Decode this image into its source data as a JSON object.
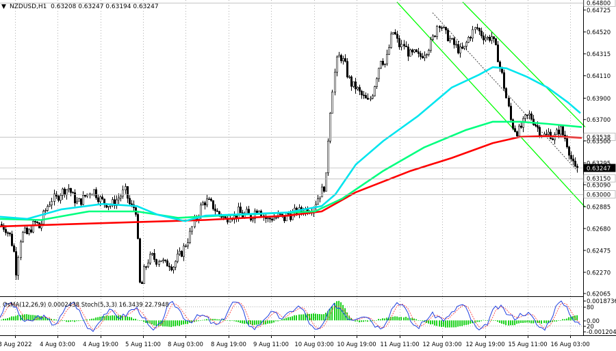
{
  "header": {
    "arrow": "▼",
    "symbol_info": "NZDUSD,H1  0.63208 0.63247 0.63194 0.63247"
  },
  "colors": {
    "candle": "#000000",
    "ema_200": "#ff0000",
    "ema_144": "#00ff7f",
    "ema_50": "#00e5ee",
    "channel": "#00ff00",
    "stoch_main": "#1f3fe0",
    "stoch_signal": "#ff4040",
    "osma": "#00cc00",
    "grid": "#7a7a7a"
  },
  "chart_data": [
    {
      "type": "candlestick",
      "title": "NZDUSD,H1",
      "ylim": [
        0.62065,
        0.648
      ],
      "price_labels": [
        "0.64800",
        "0.64725",
        "0.64520",
        "0.64315",
        "0.64110",
        "0.63900",
        "0.63700",
        "0.63538",
        "0.63500",
        "0.63295",
        "0.63247",
        "0.63150",
        "0.63090",
        "0.63000",
        "0.62885",
        "0.62680",
        "0.62475",
        "0.62270",
        "0.62065"
      ],
      "marked_levels": [
        {
          "label": "0.64800",
          "value": 0.648,
          "style": "box"
        },
        {
          "label": "0.63538",
          "value": 0.63538,
          "style": "box"
        },
        {
          "label": "0.63247",
          "value": 0.63247,
          "style": "current"
        },
        {
          "label": "0.63150",
          "value": 0.6315,
          "style": "box"
        },
        {
          "label": "0.63000",
          "value": 0.63,
          "style": "box"
        }
      ],
      "x_labels": [
        "3 Aug 2022",
        "4 Aug 03:00",
        "4 Aug 19:00",
        "5 Aug 11:00",
        "8 Aug 03:00",
        "8 Aug 19:00",
        "9 Aug 11:00",
        "10 Aug 03:00",
        "10 Aug 19:00",
        "11 Aug 11:00",
        "12 Aug 03:00",
        "12 Aug 19:00",
        "15 Aug 11:00",
        "16 Aug 03:00"
      ],
      "close_path": [
        [
          0,
          0.6272
        ],
        [
          8,
          0.6268
        ],
        [
          14,
          0.6262
        ],
        [
          20,
          0.6248
        ],
        [
          24,
          0.6225
        ],
        [
          28,
          0.6256
        ],
        [
          34,
          0.6265
        ],
        [
          40,
          0.6262
        ],
        [
          46,
          0.627
        ],
        [
          52,
          0.6274
        ],
        [
          58,
          0.6268
        ],
        [
          64,
          0.6282
        ],
        [
          70,
          0.629
        ],
        [
          76,
          0.6296
        ],
        [
          82,
          0.6296
        ],
        [
          88,
          0.6302
        ],
        [
          94,
          0.6304
        ],
        [
          100,
          0.6306
        ],
        [
          106,
          0.6298
        ],
        [
          112,
          0.6292
        ],
        [
          118,
          0.6294
        ],
        [
          124,
          0.6298
        ],
        [
          130,
          0.6302
        ],
        [
          136,
          0.6304
        ],
        [
          142,
          0.6298
        ],
        [
          148,
          0.6294
        ],
        [
          154,
          0.6292
        ],
        [
          160,
          0.629
        ],
        [
          166,
          0.6292
        ],
        [
          172,
          0.6296
        ],
        [
          178,
          0.63
        ],
        [
          182,
          0.6304
        ],
        [
          186,
          0.6296
        ],
        [
          190,
          0.6288
        ],
        [
          196,
          0.6288
        ],
        [
          200,
          0.6282
        ],
        [
          202,
          0.622
        ],
        [
          206,
          0.6212
        ],
        [
          210,
          0.6228
        ],
        [
          216,
          0.6238
        ],
        [
          222,
          0.6242
        ],
        [
          228,
          0.6238
        ],
        [
          234,
          0.624
        ],
        [
          240,
          0.6234
        ],
        [
          246,
          0.6236
        ],
        [
          252,
          0.6232
        ],
        [
          258,
          0.624
        ],
        [
          264,
          0.6244
        ],
        [
          270,
          0.6252
        ],
        [
          276,
          0.626
        ],
        [
          282,
          0.6272
        ],
        [
          288,
          0.628
        ],
        [
          294,
          0.629
        ],
        [
          300,
          0.6294
        ],
        [
          306,
          0.6292
        ],
        [
          312,
          0.6288
        ],
        [
          318,
          0.6282
        ],
        [
          324,
          0.628
        ],
        [
          330,
          0.6276
        ],
        [
          336,
          0.6282
        ],
        [
          342,
          0.6278
        ],
        [
          348,
          0.6284
        ],
        [
          354,
          0.628
        ],
        [
          360,
          0.6282
        ],
        [
          366,
          0.6278
        ],
        [
          372,
          0.6284
        ],
        [
          378,
          0.6288
        ],
        [
          384,
          0.628
        ],
        [
          390,
          0.6276
        ],
        [
          396,
          0.6278
        ],
        [
          402,
          0.6278
        ],
        [
          408,
          0.628
        ],
        [
          414,
          0.6276
        ],
        [
          420,
          0.6282
        ],
        [
          426,
          0.628
        ],
        [
          432,
          0.6284
        ],
        [
          438,
          0.6284
        ],
        [
          444,
          0.6286
        ],
        [
          450,
          0.6286
        ],
        [
          456,
          0.6288
        ],
        [
          462,
          0.6294
        ],
        [
          468,
          0.6302
        ],
        [
          472,
          0.6305
        ],
        [
          476,
          0.6312
        ],
        [
          480,
          0.636
        ],
        [
          484,
          0.6392
        ],
        [
          488,
          0.6412
        ],
        [
          492,
          0.6426
        ],
        [
          496,
          0.643
        ],
        [
          500,
          0.6426
        ],
        [
          504,
          0.642
        ],
        [
          508,
          0.641
        ],
        [
          514,
          0.6402
        ],
        [
          520,
          0.64
        ],
        [
          526,
          0.6394
        ],
        [
          532,
          0.639
        ],
        [
          538,
          0.6386
        ],
        [
          544,
          0.6396
        ],
        [
          550,
          0.6412
        ],
        [
          556,
          0.6428
        ],
        [
          562,
          0.6422
        ],
        [
          566,
          0.643
        ],
        [
          570,
          0.6444
        ],
        [
          574,
          0.6452
        ],
        [
          578,
          0.6448
        ],
        [
          582,
          0.644
        ],
        [
          586,
          0.6438
        ],
        [
          590,
          0.644
        ],
        [
          594,
          0.6434
        ],
        [
          600,
          0.643
        ],
        [
          606,
          0.6432
        ],
        [
          612,
          0.6428
        ],
        [
          618,
          0.6432
        ],
        [
          624,
          0.6436
        ],
        [
          630,
          0.6442
        ],
        [
          636,
          0.6452
        ],
        [
          640,
          0.6462
        ],
        [
          644,
          0.6458
        ],
        [
          650,
          0.645
        ],
        [
          656,
          0.6446
        ],
        [
          660,
          0.6442
        ],
        [
          666,
          0.6438
        ],
        [
          672,
          0.6434
        ],
        [
          678,
          0.6436
        ],
        [
          684,
          0.6446
        ],
        [
          690,
          0.6452
        ],
        [
          696,
          0.6456
        ],
        [
          700,
          0.6452
        ],
        [
          706,
          0.6448
        ],
        [
          712,
          0.6446
        ],
        [
          718,
          0.6448
        ],
        [
          722,
          0.644
        ],
        [
          726,
          0.6432
        ],
        [
          730,
          0.642
        ],
        [
          734,
          0.641
        ],
        [
          738,
          0.6395
        ],
        [
          742,
          0.6382
        ],
        [
          746,
          0.6368
        ],
        [
          750,
          0.6362
        ],
        [
          756,
          0.6358
        ],
        [
          762,
          0.6364
        ],
        [
          768,
          0.6372
        ],
        [
          774,
          0.6374
        ],
        [
          778,
          0.637
        ],
        [
          784,
          0.6364
        ],
        [
          790,
          0.6358
        ],
        [
          796,
          0.6354
        ],
        [
          802,
          0.6358
        ],
        [
          808,
          0.6352
        ],
        [
          814,
          0.6358
        ],
        [
          818,
          0.6362
        ],
        [
          822,
          0.6356
        ],
        [
          826,
          0.6352
        ],
        [
          830,
          0.6344
        ],
        [
          834,
          0.6334
        ],
        [
          838,
          0.6326
        ],
        [
          842,
          0.6322
        ],
        [
          845,
          0.63247
        ]
      ],
      "ema_200_path": [
        [
          0,
          0.627
        ],
        [
          100,
          0.6272
        ],
        [
          200,
          0.6274
        ],
        [
          300,
          0.6276
        ],
        [
          420,
          0.628
        ],
        [
          470,
          0.6284
        ],
        [
          520,
          0.6302
        ],
        [
          600,
          0.6322
        ],
        [
          660,
          0.6334
        ],
        [
          720,
          0.6348
        ],
        [
          760,
          0.63538
        ],
        [
          800,
          0.63545
        ],
        [
          850,
          0.6353
        ]
      ],
      "ema_144_path": [
        [
          0,
          0.6277
        ],
        [
          60,
          0.6276
        ],
        [
          130,
          0.6284
        ],
        [
          200,
          0.6284
        ],
        [
          260,
          0.6278
        ],
        [
          320,
          0.628
        ],
        [
          460,
          0.6284
        ],
        [
          500,
          0.6296
        ],
        [
          560,
          0.6322
        ],
        [
          620,
          0.6344
        ],
        [
          680,
          0.636
        ],
        [
          720,
          0.6368
        ],
        [
          760,
          0.6368
        ],
        [
          800,
          0.6366
        ],
        [
          850,
          0.6363
        ]
      ],
      "ema_50_path": [
        [
          0,
          0.6279
        ],
        [
          40,
          0.6277
        ],
        [
          90,
          0.6286
        ],
        [
          150,
          0.6291
        ],
        [
          200,
          0.6289
        ],
        [
          230,
          0.6281
        ],
        [
          270,
          0.6275
        ],
        [
          300,
          0.628
        ],
        [
          340,
          0.6281
        ],
        [
          420,
          0.6283
        ],
        [
          470,
          0.6289
        ],
        [
          490,
          0.63
        ],
        [
          520,
          0.6328
        ],
        [
          560,
          0.635
        ],
        [
          610,
          0.6373
        ],
        [
          660,
          0.64
        ],
        [
          700,
          0.6412
        ],
        [
          720,
          0.6419
        ],
        [
          740,
          0.6418
        ],
        [
          770,
          0.641
        ],
        [
          800,
          0.64
        ],
        [
          830,
          0.6386
        ],
        [
          848,
          0.6376
        ]
      ],
      "channel_lines": [
        {
          "from": [
            580,
            0.648
          ],
          "to": [
            855,
            0.6288
          ],
          "style": "solid"
        },
        {
          "from": [
            676,
            0.648
          ],
          "to": [
            855,
            0.6363
          ],
          "style": "solid"
        },
        {
          "from": [
            632,
            0.647
          ],
          "to": [
            845,
            0.6321
          ],
          "style": "dotted"
        }
      ]
    },
    {
      "type": "oscillator",
      "title": "OsMA(12,26,9) 0.0002438  Stoch(5,3,3) 16.3439 22.7948",
      "ylim": [
        -0.001204,
        0.0018736
      ],
      "axis_labels": [
        "0.0018736",
        "80",
        "0.00",
        "20",
        "-0.001204"
      ],
      "osma_ticks": [
        0,
        -0.0004,
        0.0008,
        0.0016
      ],
      "stoch_levels": [
        80,
        20
      ]
    }
  ]
}
